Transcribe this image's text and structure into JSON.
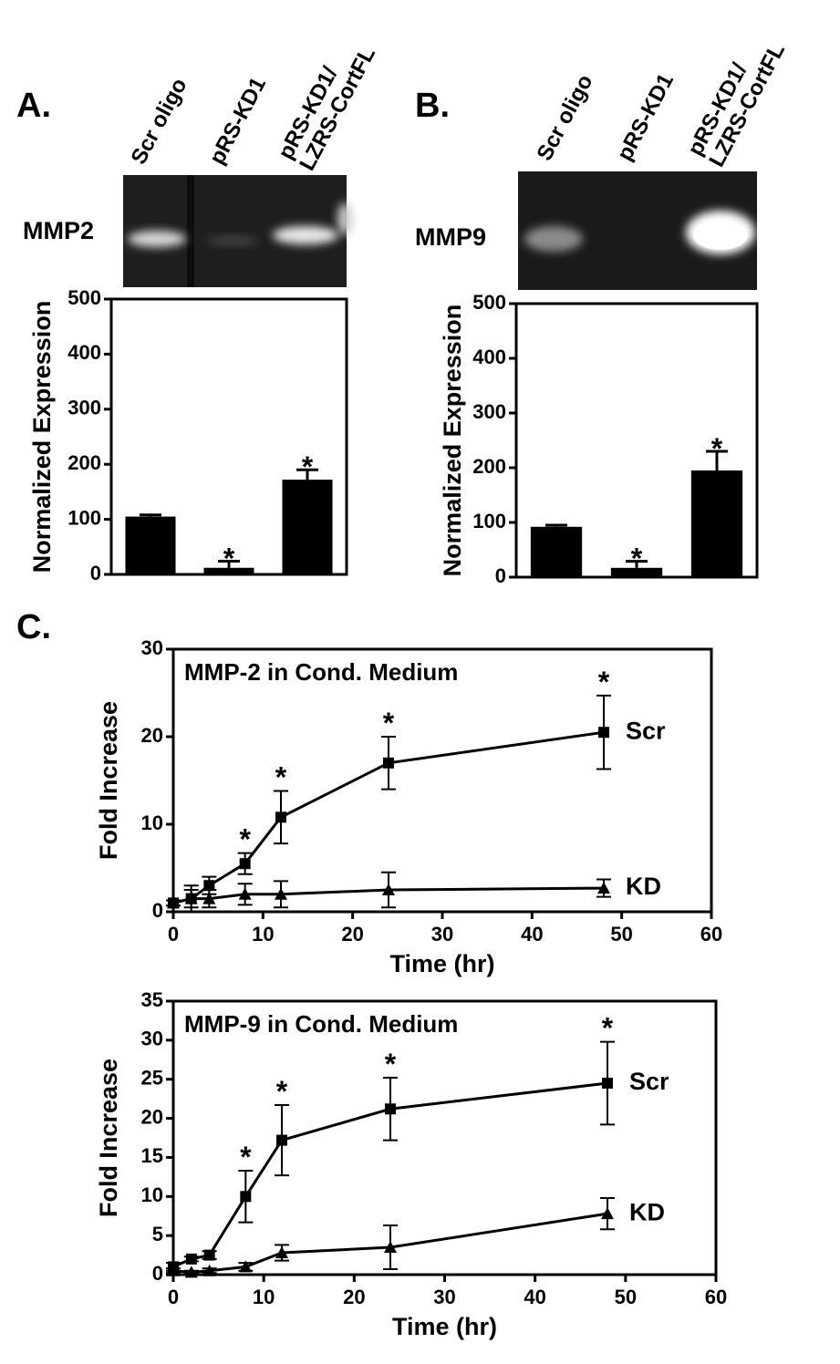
{
  "chart_data": [
    {
      "type": "bar",
      "panel": "A.",
      "gel_label": "MMP2",
      "categories": [
        "Scr oligo",
        "pRS-KD1",
        "pRS-KD1/\nLZRS-CortFL"
      ],
      "values": [
        105,
        12,
        172
      ],
      "errors": [
        3,
        12,
        18
      ],
      "significant": [
        false,
        true,
        true
      ],
      "significance_marker": "*",
      "ylabel": "Normalized Expression",
      "ylim": [
        0,
        500
      ],
      "yticks": [
        0,
        100,
        200,
        300,
        400,
        500
      ],
      "color": "#000000"
    },
    {
      "type": "bar",
      "panel": "B.",
      "gel_label": "MMP9",
      "categories": [
        "Scr oligo",
        "pRS-KD1",
        "pRS-KD1/\nLZRS-CortFL"
      ],
      "values": [
        92,
        17,
        195
      ],
      "errors": [
        3,
        12,
        35
      ],
      "significant": [
        false,
        true,
        true
      ],
      "significance_marker": "*",
      "ylabel": "Normalized Expression",
      "ylim": [
        0,
        500
      ],
      "yticks": [
        0,
        100,
        200,
        300,
        400,
        500
      ],
      "color": "#000000"
    },
    {
      "type": "line",
      "panel": "C.",
      "title": "MMP-2 in Cond. Medium",
      "xlabel": "Time (hr)",
      "ylabel": "Fold Increase",
      "x": [
        0,
        2,
        4,
        8,
        12,
        24,
        48
      ],
      "xlim": [
        0,
        60
      ],
      "xticks": [
        0,
        10,
        20,
        30,
        40,
        50,
        60
      ],
      "ylim": [
        0,
        30
      ],
      "yticks": [
        0,
        10,
        20,
        30
      ],
      "significance_marker": "*",
      "series": [
        {
          "name": "Scr",
          "color": "#000000",
          "marker": "square",
          "values": [
            1,
            1.5,
            3,
            5.5,
            10.8,
            17,
            20.5
          ],
          "errors": [
            0.3,
            1,
            1,
            1.2,
            3,
            3,
            4.2
          ],
          "significant": [
            false,
            false,
            false,
            true,
            true,
            true,
            true
          ]
        },
        {
          "name": "KD",
          "color": "#000000",
          "marker": "triangle",
          "values": [
            1,
            1.5,
            1.5,
            2,
            2,
            2.5,
            2.7
          ],
          "errors": [
            0.3,
            1.5,
            1,
            1.2,
            1.5,
            2,
            1
          ]
        }
      ]
    },
    {
      "type": "line",
      "title": "MMP-9 in Cond. Medium",
      "xlabel": "Time (hr)",
      "ylabel": "Fold Increase",
      "x": [
        0,
        2,
        4,
        8,
        12,
        24,
        48
      ],
      "xlim": [
        0,
        60
      ],
      "xticks": [
        0,
        10,
        20,
        30,
        40,
        50,
        60
      ],
      "ylim": [
        0,
        35
      ],
      "yticks": [
        0,
        5,
        10,
        15,
        20,
        25,
        30,
        35
      ],
      "significance_marker": "*",
      "series": [
        {
          "name": "Scr",
          "color": "#000000",
          "marker": "square",
          "values": [
            1,
            2,
            2.5,
            10,
            17.2,
            21.2,
            24.5
          ],
          "errors": [
            0.5,
            0.3,
            0.5,
            3.3,
            4.5,
            4,
            5.3
          ],
          "significant": [
            false,
            false,
            false,
            true,
            true,
            true,
            true
          ]
        },
        {
          "name": "KD",
          "color": "#000000",
          "marker": "triangle",
          "values": [
            0.5,
            0.3,
            0.5,
            1,
            2.8,
            3.5,
            7.8
          ],
          "errors": [
            0.3,
            0.2,
            0.3,
            0.5,
            1,
            2.8,
            2
          ]
        }
      ]
    }
  ]
}
